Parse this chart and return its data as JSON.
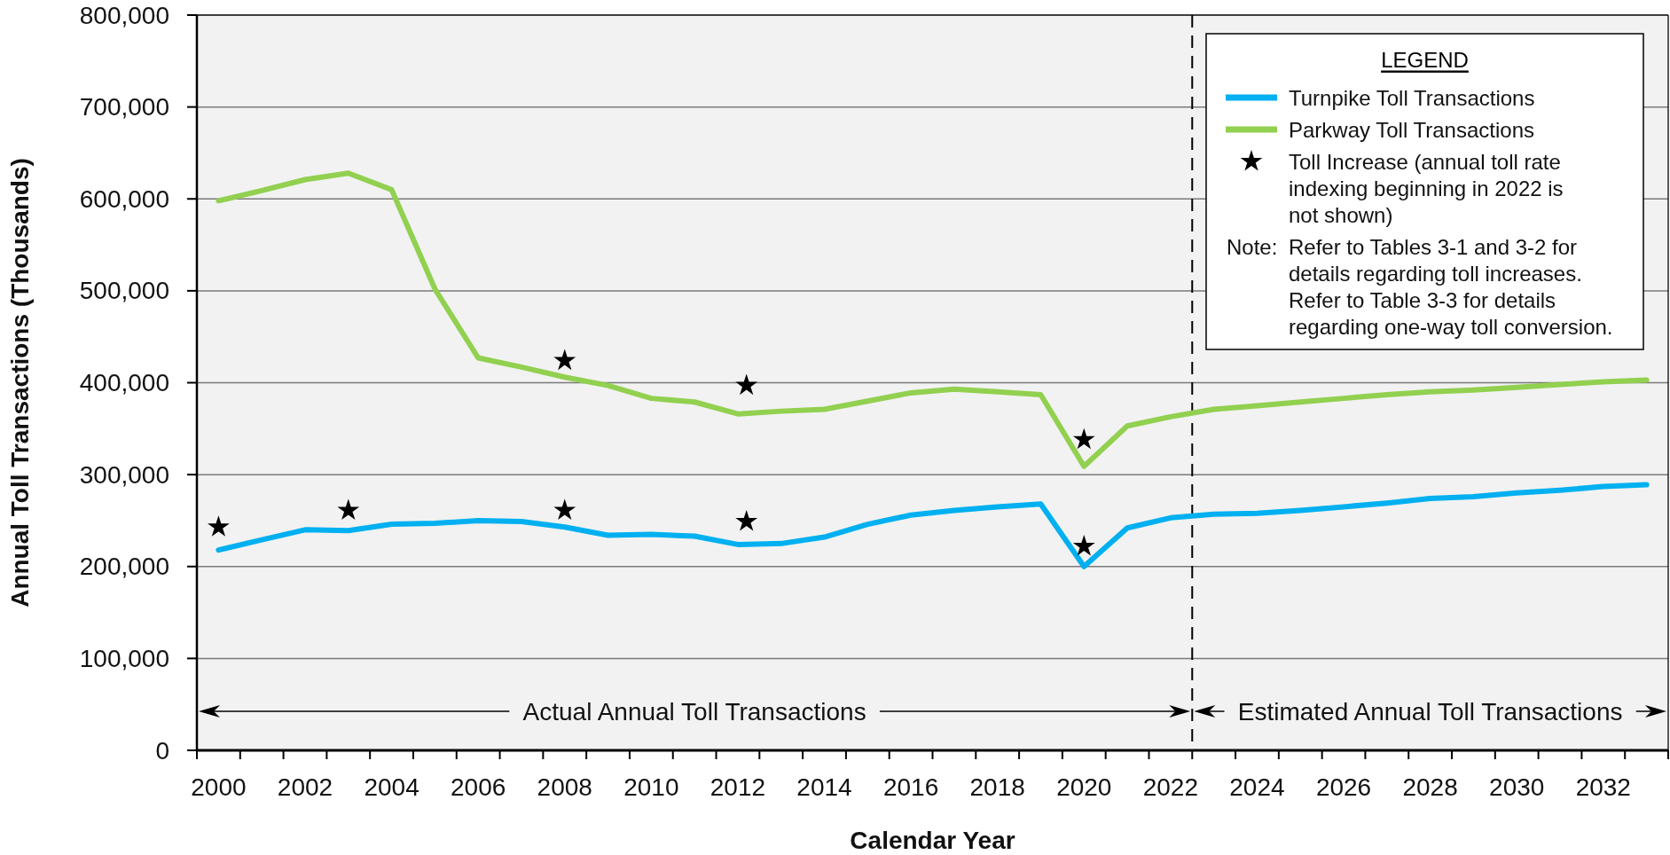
{
  "chart_data": {
    "type": "line",
    "xlabel": "Calendar Year",
    "ylabel": "Annual Toll Transactions (Thousands)",
    "legend_title": "LEGEND",
    "x": [
      2000,
      2001,
      2002,
      2003,
      2004,
      2005,
      2006,
      2007,
      2008,
      2009,
      2010,
      2011,
      2012,
      2013,
      2014,
      2015,
      2016,
      2017,
      2018,
      2019,
      2020,
      2021,
      2022,
      2023,
      2024,
      2025,
      2026,
      2027,
      2028,
      2029,
      2030,
      2031,
      2032,
      2033
    ],
    "series": [
      {
        "name": "Turnpike Toll Transactions",
        "color": "#00b0f0",
        "values": [
          218000,
          229000,
          240000,
          239000,
          246000,
          247000,
          250000,
          249000,
          243000,
          234000,
          235000,
          233000,
          224000,
          225000,
          232000,
          246000,
          256000,
          261000,
          265000,
          268000,
          200000,
          242000,
          253000,
          257000,
          258000,
          261000,
          265000,
          269000,
          274000,
          276000,
          280000,
          283000,
          287000,
          289000
        ]
      },
      {
        "name": "Parkway Toll Transactions",
        "color": "#92d050",
        "values": [
          598000,
          609000,
          621000,
          628000,
          610000,
          502000,
          427000,
          417000,
          406000,
          397000,
          383000,
          379000,
          366000,
          369000,
          371000,
          380000,
          389000,
          393000,
          390000,
          387000,
          309000,
          353000,
          363000,
          371000,
          375000,
          379000,
          383000,
          387000,
          390000,
          392000,
          395000,
          398000,
          401000,
          403000
        ]
      },
      {
        "name": "Toll Increase (annual toll rate indexing beginning in 2022 is not shown)",
        "type": "scatter",
        "marker": "star",
        "color": "#000000",
        "x": [
          2000,
          2003,
          2008,
          2008,
          2012.2,
          2012.2,
          2020,
          2020
        ],
        "values": [
          243000,
          261000,
          261000,
          424000,
          249000,
          397000,
          222000,
          338000
        ]
      }
    ],
    "xlim": [
      1999.5,
      2033.5
    ],
    "xticks": [
      {
        "value": 1999.5,
        "label": null
      },
      2000,
      {
        "value": 2000.5,
        "label": null
      },
      {
        "value": 2001.5,
        "label": null
      },
      2002,
      {
        "value": 2002.5,
        "label": null
      },
      {
        "value": 2003.5,
        "label": null
      },
      2004,
      {
        "value": 2004.5,
        "label": null
      },
      {
        "value": 2005.5,
        "label": null
      },
      2006,
      {
        "value": 2006.5,
        "label": null
      },
      {
        "value": 2007.5,
        "label": null
      },
      2008,
      {
        "value": 2008.5,
        "label": null
      },
      {
        "value": 2009.5,
        "label": null
      },
      2010,
      {
        "value": 2010.5,
        "label": null
      },
      {
        "value": 2011.5,
        "label": null
      },
      2012,
      {
        "value": 2012.5,
        "label": null
      },
      {
        "value": 2013.5,
        "label": null
      },
      2014,
      {
        "value": 2014.5,
        "label": null
      },
      {
        "value": 2015.5,
        "label": null
      },
      2016,
      {
        "value": 2016.5,
        "label": null
      },
      {
        "value": 2017.5,
        "label": null
      },
      2018,
      {
        "value": 2018.5,
        "label": null
      },
      {
        "value": 2019.5,
        "label": null
      },
      2020,
      {
        "value": 2020.5,
        "label": null
      },
      {
        "value": 2021.5,
        "label": null
      },
      2022,
      {
        "value": 2022.5,
        "label": null
      },
      {
        "value": 2023.5,
        "label": null
      },
      2024,
      {
        "value": 2024.5,
        "label": null
      },
      {
        "value": 2025.5,
        "label": null
      },
      2026,
      {
        "value": 2026.5,
        "label": null
      },
      {
        "value": 2027.5,
        "label": null
      },
      2028,
      {
        "value": 2028.5,
        "label": null
      },
      {
        "value": 2029.5,
        "label": null
      },
      2030,
      {
        "value": 2030.5,
        "label": null
      },
      {
        "value": 2031.5,
        "label": null
      },
      2032,
      {
        "value": 2032.5,
        "label": null
      },
      {
        "value": 2033.5,
        "label": null
      }
    ],
    "ylim": [
      0,
      800000
    ],
    "yticks": [
      0,
      {
        "value": 100000,
        "label": "100,000"
      },
      {
        "value": 200000,
        "label": "200,000"
      },
      {
        "value": 300000,
        "label": "300,000"
      },
      {
        "value": 400000,
        "label": "400,000"
      },
      {
        "value": 500000,
        "label": "500,000"
      },
      {
        "value": 600000,
        "label": "600,000"
      },
      {
        "value": 700000,
        "label": "700,000"
      },
      {
        "value": 800000,
        "label": "800,000"
      }
    ],
    "grid": "y",
    "legend": "top right",
    "ref_lines": [
      {
        "axis": "x",
        "value": 2022.5,
        "color": "#000000",
        "line_style": "dashed"
      }
    ],
    "annotations": [
      "Actual Annual Toll Transactions",
      "Estimated Annual Toll Transactions",
      "Note: Refer to Tables 3-1 and 3-2 for details regarding toll increases. Refer to Table 3-3 for details regarding one-way toll conversion."
    ]
  }
}
